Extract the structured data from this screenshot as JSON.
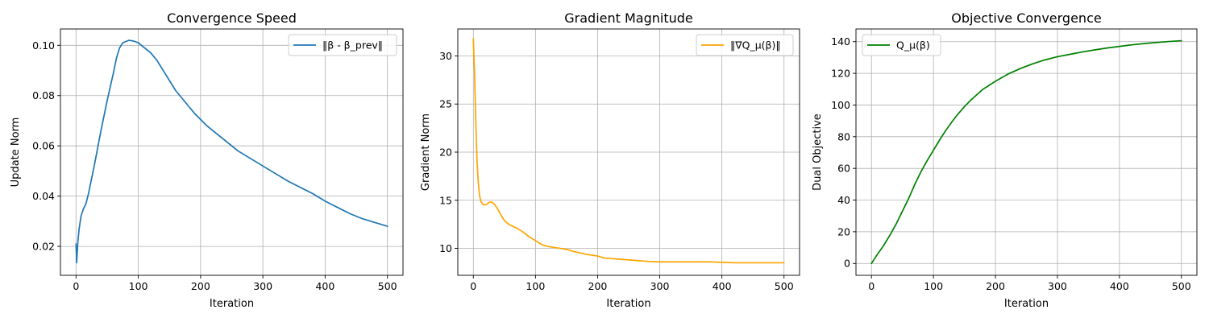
{
  "chart_data": [
    {
      "type": "line",
      "title": "Convergence Speed",
      "xlabel": "Iteration",
      "ylabel": "Update Norm",
      "xlim": [
        -25,
        525
      ],
      "ylim": [
        0.0085,
        0.1065
      ],
      "xticks": [
        0,
        100,
        200,
        300,
        400,
        500
      ],
      "yticks": [
        0.02,
        0.04,
        0.06,
        0.08,
        0.1
      ],
      "ytick_labels": [
        "0.02",
        "0.04",
        "0.06",
        "0.08",
        "0.10"
      ],
      "grid": true,
      "legend_position": "top-right",
      "series": [
        {
          "name": "‖β - β_prev‖",
          "color": "#1f77b4",
          "x": [
            0,
            1,
            2,
            3,
            5,
            8,
            12,
            16,
            20,
            25,
            30,
            40,
            50,
            60,
            65,
            70,
            75,
            80,
            85,
            90,
            95,
            100,
            110,
            120,
            130,
            140,
            150,
            160,
            170,
            180,
            190,
            200,
            210,
            220,
            240,
            260,
            280,
            300,
            320,
            340,
            360,
            380,
            400,
            420,
            440,
            460,
            480,
            500
          ],
          "y": [
            0.021,
            0.0135,
            0.018,
            0.022,
            0.027,
            0.032,
            0.035,
            0.037,
            0.041,
            0.047,
            0.053,
            0.066,
            0.078,
            0.089,
            0.095,
            0.099,
            0.101,
            0.1015,
            0.102,
            0.1018,
            0.1015,
            0.101,
            0.099,
            0.097,
            0.094,
            0.09,
            0.086,
            0.082,
            0.079,
            0.076,
            0.073,
            0.0705,
            0.068,
            0.066,
            0.062,
            0.058,
            0.055,
            0.052,
            0.049,
            0.046,
            0.0435,
            0.041,
            0.038,
            0.0355,
            0.033,
            0.031,
            0.0295,
            0.028
          ]
        }
      ]
    },
    {
      "type": "line",
      "title": "Gradient Magnitude",
      "xlabel": "Iteration",
      "ylabel": "Gradient Norm",
      "xlim": [
        -25,
        525
      ],
      "ylim": [
        7.2,
        32.8
      ],
      "xticks": [
        0,
        100,
        200,
        300,
        400,
        500
      ],
      "yticks": [
        10,
        15,
        20,
        25,
        30
      ],
      "ytick_labels": [
        "10",
        "15",
        "20",
        "25",
        "30"
      ],
      "grid": true,
      "legend_position": "top-right",
      "series": [
        {
          "name": "‖∇Q_μ(β)‖",
          "color": "#ffa500",
          "x": [
            0,
            2,
            4,
            6,
            8,
            10,
            12,
            15,
            18,
            22,
            26,
            30,
            35,
            40,
            45,
            50,
            55,
            60,
            70,
            80,
            90,
            100,
            110,
            120,
            130,
            140,
            150,
            160,
            170,
            180,
            190,
            200,
            210,
            220,
            240,
            260,
            280,
            300,
            320,
            340,
            360,
            380,
            400,
            420,
            440,
            460,
            480,
            500
          ],
          "y": [
            31.8,
            28.0,
            23.0,
            19.0,
            16.8,
            15.5,
            14.9,
            14.6,
            14.5,
            14.6,
            14.8,
            14.8,
            14.5,
            14.0,
            13.4,
            12.9,
            12.6,
            12.4,
            12.1,
            11.7,
            11.2,
            10.8,
            10.4,
            10.2,
            10.1,
            10.0,
            9.9,
            9.7,
            9.55,
            9.4,
            9.3,
            9.2,
            9.0,
            8.95,
            8.85,
            8.75,
            8.65,
            8.6,
            8.6,
            8.6,
            8.6,
            8.6,
            8.55,
            8.5,
            8.5,
            8.5,
            8.5,
            8.5
          ]
        }
      ]
    },
    {
      "type": "line",
      "title": "Objective Convergence",
      "xlabel": "Iteration",
      "ylabel": "Dual Objective",
      "xlim": [
        -25,
        525
      ],
      "ylim": [
        -7.5,
        148
      ],
      "xticks": [
        0,
        100,
        200,
        300,
        400,
        500
      ],
      "yticks": [
        0,
        20,
        40,
        60,
        80,
        100,
        120,
        140
      ],
      "ytick_labels": [
        "0",
        "20",
        "40",
        "60",
        "80",
        "100",
        "120",
        "140"
      ],
      "grid": true,
      "legend_position": "top-left",
      "series": [
        {
          "name": "Q_μ(β)",
          "color": "#008000",
          "x": [
            0,
            5,
            10,
            20,
            30,
            40,
            50,
            60,
            70,
            80,
            90,
            100,
            110,
            120,
            130,
            140,
            150,
            160,
            170,
            180,
            190,
            200,
            220,
            240,
            260,
            280,
            300,
            320,
            340,
            360,
            380,
            400,
            420,
            440,
            460,
            480,
            500
          ],
          "y": [
            0,
            3,
            6,
            11.5,
            18,
            25,
            33,
            41,
            50,
            58,
            65,
            71.5,
            78,
            84,
            89.5,
            94.5,
            99,
            103,
            106.5,
            110,
            112.5,
            115,
            119.5,
            123,
            126,
            128.5,
            130.5,
            132,
            133.5,
            134.8,
            136,
            137,
            138,
            138.8,
            139.5,
            140.1,
            140.6
          ]
        }
      ]
    }
  ]
}
